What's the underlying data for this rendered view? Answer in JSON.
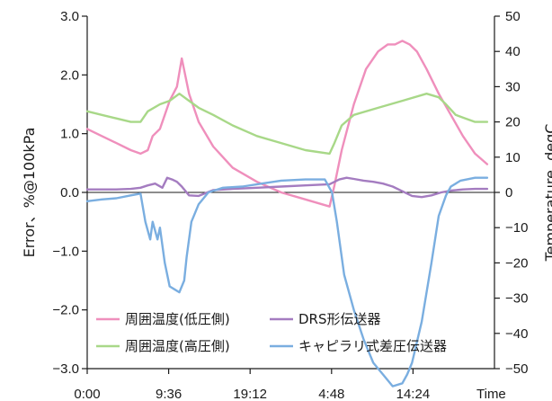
{
  "chart_data": {
    "type": "line",
    "title": "",
    "ylabel": "Error、%@100kPa",
    "y2label": "Temperature, degC",
    "xlabel": "Time",
    "ylim": [
      -3.0,
      3.0
    ],
    "y2lim": [
      -50,
      50
    ],
    "xlim": [
      0,
      1680
    ],
    "grid": false,
    "legend_position": "bottom-center",
    "y_ticks": [
      "−3.0",
      "−2.0",
      "−1.0",
      "0.0",
      "1.0",
      "2.0",
      "3.0"
    ],
    "y_tick_values": [
      -3.0,
      -2.0,
      -1.0,
      0.0,
      1.0,
      2.0,
      3.0
    ],
    "y2_ticks": [
      "−50",
      "−40",
      "−30",
      "−20",
      "−10",
      "0",
      "10",
      "20",
      "30",
      "40",
      "50"
    ],
    "y2_tick_values": [
      -50,
      -40,
      -30,
      -20,
      -10,
      0,
      10,
      20,
      30,
      40,
      50
    ],
    "x_ticks": [
      "0:00",
      "9:36",
      "19:12",
      "4:48",
      "14:24"
    ],
    "x_tick_values": [
      0,
      336,
      672,
      1008,
      1344
    ],
    "series": [
      {
        "name": "周囲温度(低圧側)",
        "axis": "right",
        "color": "#ef8fbc",
        "x": [
          0,
          60,
          120,
          180,
          220,
          250,
          270,
          300,
          320,
          340,
          370,
          390,
          420,
          460,
          520,
          600,
          700,
          800,
          900,
          1000,
          1020,
          1050,
          1100,
          1150,
          1200,
          1240,
          1270,
          1300,
          1330,
          1360,
          1400,
          1450,
          1500,
          1550,
          1600,
          1650
        ],
        "y": [
          18,
          16,
          14,
          12,
          11,
          12,
          16,
          18,
          22,
          26,
          30,
          38,
          28,
          20,
          13,
          7,
          3,
          0,
          -2,
          -4,
          2,
          12,
          25,
          35,
          40,
          42,
          42,
          43,
          42,
          40,
          35,
          28,
          22,
          16,
          11,
          8
        ]
      },
      {
        "name": "周囲温度(高圧側)",
        "axis": "right",
        "color": "#a8d888",
        "x": [
          0,
          60,
          120,
          180,
          220,
          250,
          300,
          340,
          380,
          420,
          460,
          520,
          600,
          700,
          800,
          900,
          1000,
          1020,
          1050,
          1100,
          1200,
          1300,
          1400,
          1450,
          1480,
          1520,
          1560,
          1600,
          1650
        ],
        "y": [
          23,
          22,
          21,
          20,
          20,
          23,
          25,
          26,
          28,
          26,
          24,
          22,
          19,
          16,
          14,
          12,
          11,
          14,
          19,
          22,
          24,
          26,
          28,
          27,
          25,
          22,
          21,
          20,
          20
        ]
      },
      {
        "name": "DRS形伝送器",
        "axis": "left",
        "color": "#a47cc0",
        "x": [
          0,
          60,
          120,
          180,
          220,
          250,
          280,
          310,
          330,
          350,
          370,
          390,
          420,
          460,
          520,
          600,
          700,
          800,
          900,
          1000,
          1040,
          1070,
          1100,
          1140,
          1180,
          1220,
          1260,
          1300,
          1340,
          1380,
          1420,
          1460,
          1500,
          1550,
          1600,
          1650
        ],
        "y": [
          0.05,
          0.05,
          0.05,
          0.06,
          0.08,
          0.12,
          0.15,
          0.08,
          0.25,
          0.22,
          0.18,
          0.1,
          -0.05,
          -0.06,
          0.04,
          0.06,
          0.08,
          0.1,
          0.12,
          0.14,
          0.22,
          0.25,
          0.23,
          0.2,
          0.18,
          0.15,
          0.1,
          0.02,
          -0.06,
          -0.08,
          -0.05,
          0.0,
          0.03,
          0.05,
          0.06,
          0.06
        ]
      },
      {
        "name": "キャピラリ式差圧伝送器",
        "axis": "left",
        "color": "#7aaee0",
        "x": [
          0,
          60,
          120,
          180,
          220,
          240,
          260,
          270,
          290,
          300,
          320,
          340,
          360,
          380,
          400,
          410,
          430,
          460,
          500,
          560,
          640,
          720,
          800,
          900,
          980,
          1010,
          1030,
          1060,
          1100,
          1140,
          1180,
          1220,
          1260,
          1300,
          1320,
          1340,
          1380,
          1420,
          1450,
          1480,
          1500,
          1540,
          1600,
          1650
        ],
        "y": [
          -0.15,
          -0.12,
          -0.1,
          -0.05,
          -0.02,
          -0.5,
          -0.8,
          -0.5,
          -0.8,
          -0.6,
          -1.2,
          -1.6,
          -1.65,
          -1.7,
          -1.5,
          -1.1,
          -0.5,
          -0.2,
          0.0,
          0.08,
          0.1,
          0.15,
          0.2,
          0.22,
          0.22,
          0.0,
          -0.5,
          -1.4,
          -2.0,
          -2.5,
          -2.9,
          -3.1,
          -3.3,
          -3.25,
          -3.1,
          -2.9,
          -2.2,
          -1.2,
          -0.4,
          -0.05,
          0.1,
          0.2,
          0.25,
          0.25
        ]
      }
    ]
  }
}
